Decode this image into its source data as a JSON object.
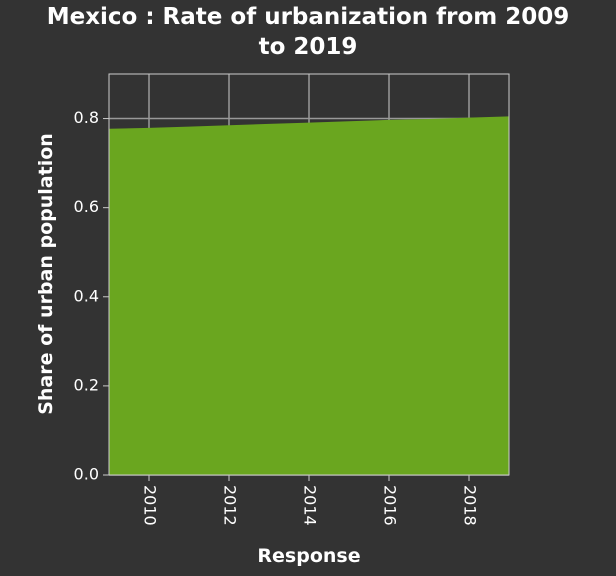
{
  "chart_data": {
    "type": "area",
    "title_line1": "Mexico : Rate of urbanization from 2009",
    "title_line2": "to 2019",
    "xlabel": "Response",
    "ylabel": "Share of urban population",
    "x": [
      2009,
      2010,
      2011,
      2012,
      2013,
      2014,
      2015,
      2016,
      2017,
      2018,
      2019
    ],
    "series": [
      {
        "values": [
          0.777,
          0.779,
          0.782,
          0.785,
          0.788,
          0.791,
          0.794,
          0.797,
          0.799,
          0.802,
          0.805
        ]
      }
    ],
    "xlim": [
      2009,
      2019
    ],
    "ylim": [
      0,
      0.9
    ],
    "xticks": [
      2010,
      2012,
      2014,
      2016,
      2018
    ],
    "xtick_labels": [
      "2010",
      "2012",
      "2014",
      "2016",
      "2018"
    ],
    "yticks": [
      0,
      0.2,
      0.4,
      0.6,
      0.8
    ],
    "ytick_labels": [
      "0.0",
      "0.2",
      "0.4",
      "0.6",
      "0.8"
    ],
    "grid": true,
    "colors": {
      "fill": "#6aa61f",
      "background": "#333333",
      "grid": "#999999",
      "text": "#ffffff"
    }
  }
}
